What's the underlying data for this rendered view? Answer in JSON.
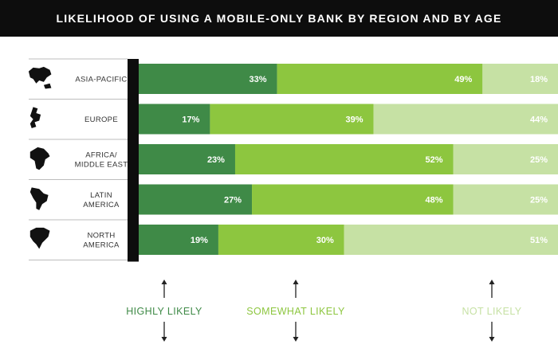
{
  "title": "LIKELIHOOD OF USING A MOBILE-ONLY BANK BY REGION AND BY AGE",
  "colors": {
    "highly": "#3f8a47",
    "somewhat": "#8dc63f",
    "not": "#c6e1a4",
    "axis": "#0d0d0d",
    "title_bg": "#0d0d0d"
  },
  "chart_data": {
    "type": "bar",
    "orientation": "horizontal",
    "stacked": true,
    "categories": [
      "ASIA-PACIFIC",
      "EUROPE",
      "AFRICA/ MIDDLE EAST",
      "LATIN AMERICA",
      "NORTH AMERICA"
    ],
    "category_lines": [
      [
        "ASIA-PACIFIC"
      ],
      [
        "EUROPE"
      ],
      [
        "AFRICA/",
        "MIDDLE EAST"
      ],
      [
        "LATIN",
        "AMERICA"
      ],
      [
        "NORTH",
        "AMERICA"
      ]
    ],
    "category_icons": [
      "asia-pacific-map-icon",
      "europe-map-icon",
      "africa-map-icon",
      "latin-america-map-icon",
      "north-america-map-icon"
    ],
    "series": [
      {
        "name": "HIGHLY LIKELY",
        "values": [
          33,
          17,
          23,
          27,
          19
        ]
      },
      {
        "name": "SOMEWHAT LIKELY",
        "values": [
          49,
          39,
          52,
          48,
          30
        ]
      },
      {
        "name": "NOT LIKELY",
        "values": [
          18,
          44,
          25,
          25,
          51
        ]
      }
    ],
    "data_labels": [
      [
        "33%",
        "17%",
        "23%",
        "27%",
        "19%"
      ],
      [
        "49%",
        "39%",
        "52%",
        "48%",
        "30%"
      ],
      [
        "18%",
        "44%",
        "25%",
        "25%",
        "51%"
      ]
    ],
    "xlim": [
      0,
      100
    ],
    "grid": false,
    "legend_position": "bottom"
  }
}
